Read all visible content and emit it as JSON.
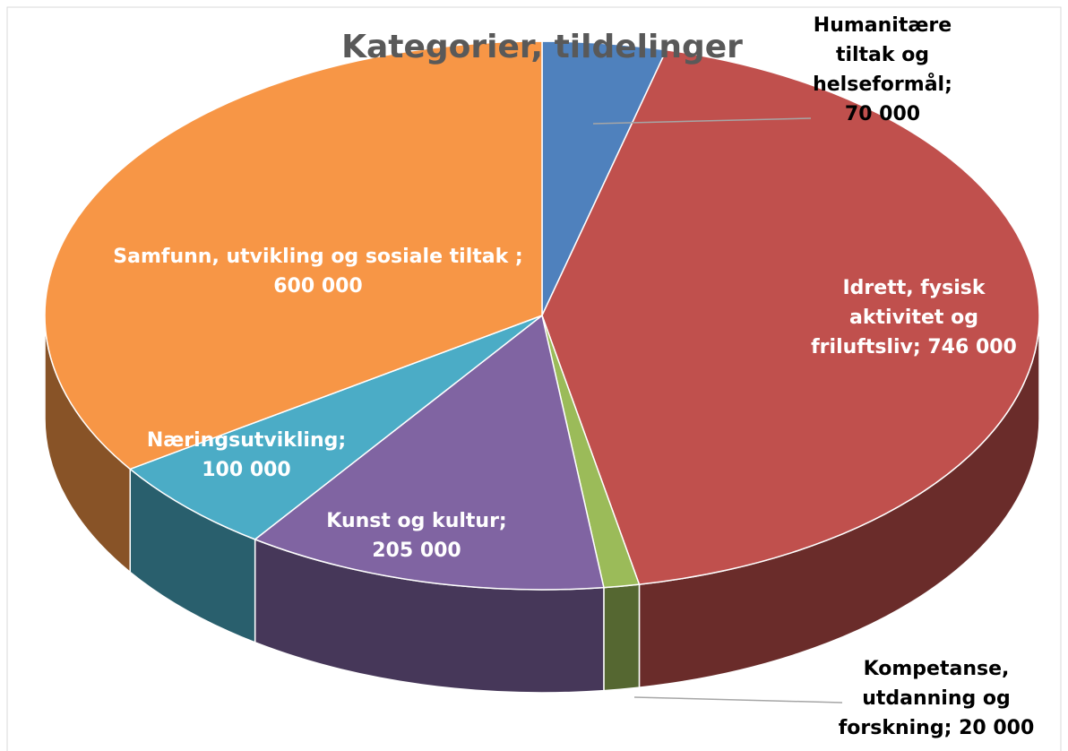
{
  "chart_data": {
    "type": "pie3d",
    "title": "Kategorier, tildelinger",
    "categories": [
      "Humanitære tiltak og helseformål;",
      "Idrett, fysisk aktivitet og friluftsliv;",
      "Kompetanse, utdanning og forskning;",
      "Kunst og kultur;",
      "Næringsutvikling;",
      "Samfunn, utvikling og sosiale tiltak ;"
    ],
    "values": [
      70000,
      746000,
      20000,
      205000,
      100000,
      600000
    ],
    "value_labels": [
      "70 000",
      "746 000",
      "20 000",
      "205 000",
      "100 000",
      "600 000"
    ],
    "colors": [
      "#4f81bd",
      "#c0504d",
      "#9bbb59",
      "#8064a2",
      "#4bacc6",
      "#f79646"
    ]
  }
}
